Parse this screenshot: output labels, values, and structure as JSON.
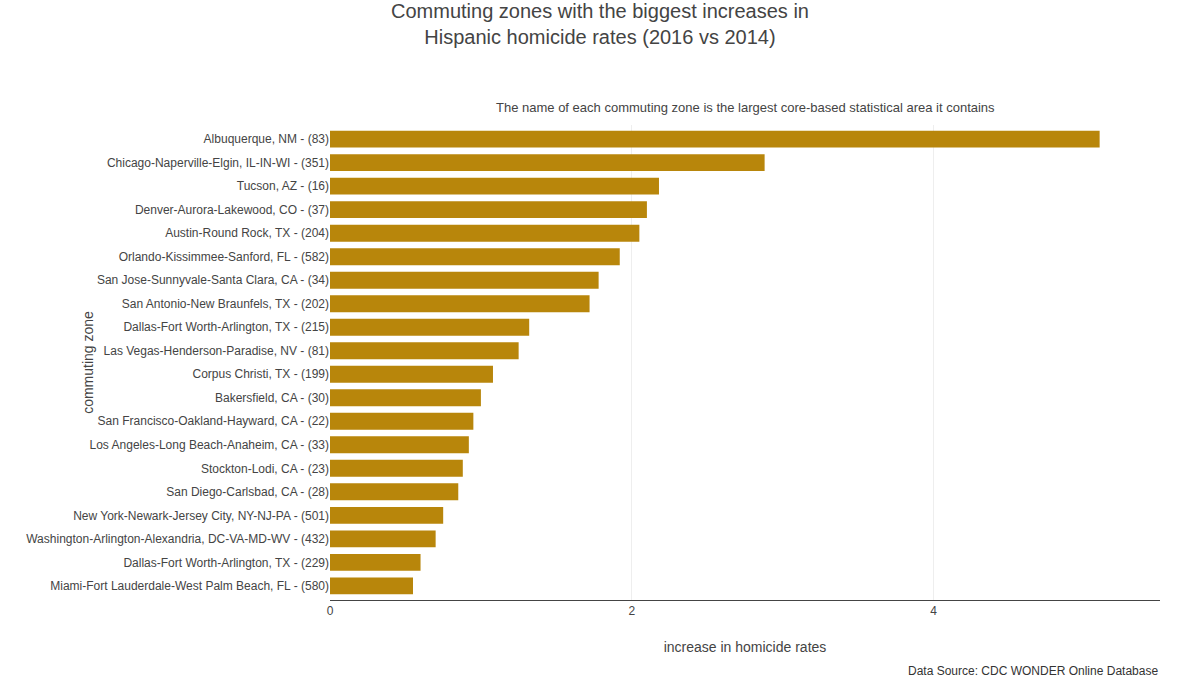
{
  "chart_data": {
    "type": "bar",
    "orientation": "horizontal",
    "title": "Commuting zones with the biggest increases in\nHispanic homicide rates (2016 vs 2014)",
    "subtitle": "The name of each commuting zone is the largest core-based statistical area it contains",
    "xlabel": "increase in homicide rates",
    "ylabel": "commuting zone",
    "annotations": [
      "Data Source: CDC WONDER Online Database"
    ],
    "categories": [
      "Miami-Fort Lauderdale-West Palm Beach, FL - (580)",
      "Dallas-Fort Worth-Arlington, TX - (229)",
      "Washington-Arlington-Alexandria, DC-VA-MD-WV - (432)",
      "New York-Newark-Jersey City, NY-NJ-PA - (501)",
      "San Diego-Carlsbad, CA - (28)",
      "Stockton-Lodi, CA - (23)",
      "Los Angeles-Long Beach-Anaheim, CA - (33)",
      "San Francisco-Oakland-Hayward, CA - (22)",
      "Bakersfield, CA - (30)",
      "Corpus Christi, TX - (199)",
      "Las Vegas-Henderson-Paradise, NV - (81)",
      "Dallas-Fort Worth-Arlington, TX - (215)",
      "San Antonio-New Braunfels, TX - (202)",
      "San Jose-Sunnyvale-Santa Clara, CA - (34)",
      "Orlando-Kissimmee-Sanford, FL - (582)",
      "Austin-Round Rock, TX - (204)",
      "Denver-Aurora-Lakewood, CO - (37)",
      "Tucson, AZ - (16)",
      "Chicago-Naperville-Elgin, IL-IN-WI - (351)",
      "Albuquerque, NM - (83)"
    ],
    "values": [
      0.55,
      0.6,
      0.7,
      0.75,
      0.85,
      0.88,
      0.92,
      0.95,
      1.0,
      1.08,
      1.25,
      1.32,
      1.72,
      1.78,
      1.92,
      2.05,
      2.1,
      2.18,
      2.88,
      5.1
    ],
    "color": "#b8860b",
    "xlim": [
      0,
      5.5
    ],
    "xticks": [
      0,
      2,
      4
    ],
    "grid": true
  }
}
